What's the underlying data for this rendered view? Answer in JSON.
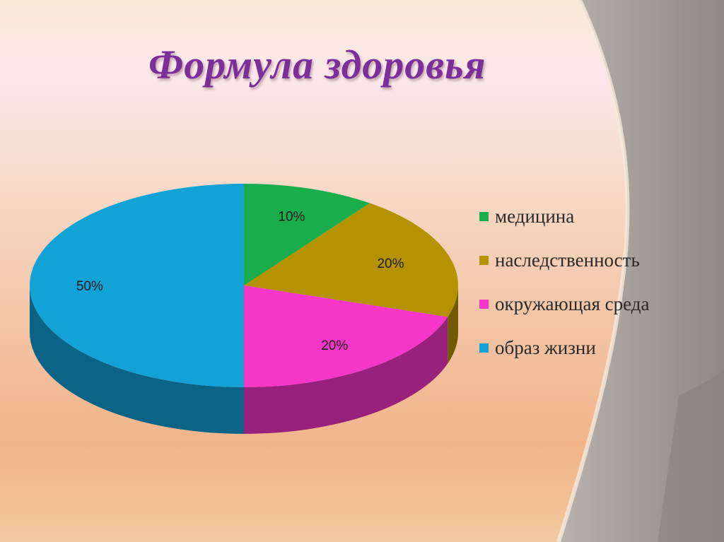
{
  "slide": {
    "title": "Формула здоровья"
  },
  "theme": {
    "title_color": "#7a2f9a",
    "arc_color": "#a39d97",
    "text_color": "#2a2a2a"
  },
  "chart_data": {
    "type": "pie",
    "title": "",
    "style": "3d",
    "legend_position": "right",
    "series": [
      {
        "categories": [
          "медицина",
          "наследственность",
          "окружающая среда",
          "образ жизни"
        ],
        "values": [
          10,
          20,
          20,
          50
        ],
        "labels": [
          "10%",
          "20%",
          "20%",
          "50%"
        ],
        "colors": [
          "#1aad4e",
          "#b49200",
          "#f536c9",
          "#12a2d6"
        ]
      }
    ]
  }
}
